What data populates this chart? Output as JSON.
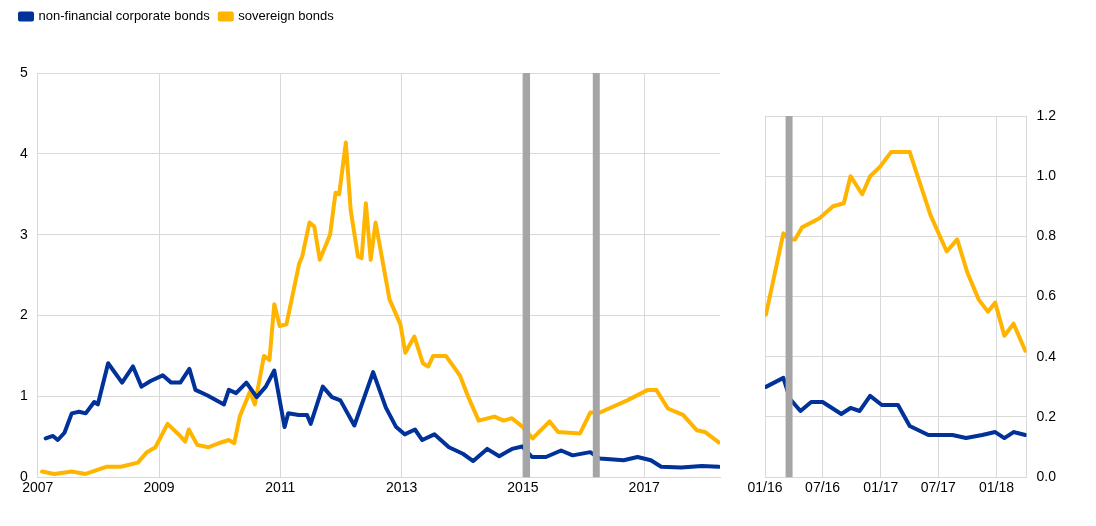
{
  "chart_data": [
    {
      "type": "line",
      "legend": "top left",
      "grid": true,
      "marker": "none",
      "line_style": "solid",
      "xlim": [
        2007,
        2018.25
      ],
      "xticks": [
        2007,
        2009,
        2011,
        2013,
        2015,
        2017
      ],
      "ylim": [
        0,
        5
      ],
      "yticks": [
        0,
        1,
        2,
        3,
        4,
        5
      ],
      "ref_lines": [
        {
          "axis": "x",
          "value": 2015.06,
          "label": null,
          "color": "#a5a5a5"
        },
        {
          "axis": "x",
          "value": 2016.21,
          "label": null,
          "color": "#a5a5a5"
        }
      ],
      "series": [
        {
          "name": "non-financial corporate bonds",
          "color": "#003299",
          "x": [
            2007.13,
            2007.25,
            2007.33,
            2007.44,
            2007.56,
            2007.68,
            2007.79,
            2007.93,
            2007.99,
            2008.16,
            2008.39,
            2008.57,
            2008.71,
            2008.86,
            2009.06,
            2009.2,
            2009.35,
            2009.5,
            2009.6,
            2009.8,
            2010.07,
            2010.15,
            2010.27,
            2010.44,
            2010.61,
            2010.76,
            2010.9,
            2011.07,
            2011.13,
            2011.3,
            2011.44,
            2011.5,
            2011.7,
            2011.85,
            2011.99,
            2012.22,
            2012.53,
            2012.74,
            2012.91,
            2013.05,
            2013.22,
            2013.34,
            2013.54,
            2013.78,
            2014.01,
            2014.18,
            2014.41,
            2014.61,
            2014.82,
            2014.99,
            2015.15,
            2015.38,
            2015.63,
            2015.82,
            2016.11,
            2016.27,
            2016.66,
            2016.89,
            2017.11,
            2017.28,
            2017.61,
            2017.95,
            2018.23
          ],
          "values": [
            0.48,
            0.51,
            0.46,
            0.55,
            0.79,
            0.81,
            0.79,
            0.93,
            0.9,
            1.41,
            1.17,
            1.37,
            1.12,
            1.19,
            1.26,
            1.17,
            1.17,
            1.34,
            1.08,
            1.01,
            0.9,
            1.08,
            1.04,
            1.17,
            0.99,
            1.12,
            1.32,
            0.62,
            0.79,
            0.77,
            0.77,
            0.66,
            1.12,
            0.99,
            0.95,
            0.64,
            1.3,
            0.86,
            0.62,
            0.53,
            0.59,
            0.46,
            0.53,
            0.37,
            0.29,
            0.2,
            0.35,
            0.26,
            0.35,
            0.38,
            0.25,
            0.25,
            0.33,
            0.27,
            0.31,
            0.23,
            0.21,
            0.25,
            0.21,
            0.13,
            0.12,
            0.14,
            0.13
          ]
        },
        {
          "name": "sovereign bonds",
          "color": "#ffb400",
          "x": [
            2007.07,
            2007.27,
            2007.56,
            2007.79,
            2008.14,
            2008.37,
            2008.65,
            2008.8,
            2008.94,
            2009.14,
            2009.35,
            2009.43,
            2009.49,
            2009.63,
            2009.81,
            2009.98,
            2010.15,
            2010.24,
            2010.33,
            2010.5,
            2010.58,
            2010.73,
            2010.82,
            2010.9,
            2010.99,
            2011.1,
            2011.31,
            2011.36,
            2011.48,
            2011.56,
            2011.65,
            2011.82,
            2011.91,
            2011.97,
            2012.08,
            2012.16,
            2012.28,
            2012.34,
            2012.41,
            2012.49,
            2012.57,
            2012.66,
            2012.8,
            2012.98,
            2013.06,
            2013.21,
            2013.35,
            2013.44,
            2013.52,
            2013.73,
            2013.96,
            2014.1,
            2014.27,
            2014.53,
            2014.68,
            2014.82,
            2015.0,
            2015.16,
            2015.44,
            2015.58,
            2015.94,
            2016.11,
            2016.27,
            2016.72,
            2017.06,
            2017.2,
            2017.39,
            2017.64,
            2017.87,
            2018.0,
            2018.23
          ],
          "values": [
            0.07,
            0.04,
            0.07,
            0.04,
            0.13,
            0.13,
            0.18,
            0.31,
            0.37,
            0.66,
            0.51,
            0.44,
            0.59,
            0.4,
            0.37,
            0.42,
            0.46,
            0.42,
            0.75,
            1.06,
            0.9,
            1.5,
            1.45,
            2.14,
            1.87,
            1.89,
            2.64,
            2.73,
            3.15,
            3.1,
            2.69,
            3.0,
            3.52,
            3.5,
            4.14,
            3.3,
            2.73,
            2.71,
            3.39,
            2.69,
            3.15,
            2.78,
            2.2,
            1.89,
            1.54,
            1.74,
            1.41,
            1.37,
            1.5,
            1.5,
            1.26,
            0.99,
            0.7,
            0.75,
            0.7,
            0.73,
            0.62,
            0.48,
            0.69,
            0.56,
            0.54,
            0.8,
            0.8,
            0.95,
            1.08,
            1.08,
            0.85,
            0.77,
            0.58,
            0.56,
            0.43
          ]
        }
      ]
    },
    {
      "type": "line",
      "grid": true,
      "marker": "none",
      "line_style": "solid",
      "xlim": [
        "2016-01-01",
        "2018-04-06"
      ],
      "xticks": [
        {
          "value": "2016-01-01",
          "label": "01/16"
        },
        {
          "value": "2016-07-01",
          "label": "07/16"
        },
        {
          "value": "2017-01-01",
          "label": "01/17"
        },
        {
          "value": "2017-07-01",
          "label": "07/17"
        },
        {
          "value": "2018-01-01",
          "label": "01/18"
        }
      ],
      "ylim": [
        0,
        1.2
      ],
      "yticks": [
        {
          "value": 0,
          "label": "0.0"
        },
        0.2,
        0.4,
        0.6,
        0.8,
        {
          "value": 1,
          "label": "1.0"
        },
        1.2
      ],
      "ref_lines": [
        {
          "axis": "x",
          "value": "2016-03-17",
          "label": null,
          "color": "#a5a5a5"
        }
      ],
      "series": [
        {
          "color": "#003299",
          "x": [
            "2016-01-04",
            "2016-02-28",
            "2016-03-20",
            "2016-04-22",
            "2016-05-26",
            "2016-07-01",
            "2016-08-29",
            "2016-09-27",
            "2016-10-26",
            "2016-11-28",
            "2017-01-04",
            "2017-02-24",
            "2017-04-02",
            "2017-05-31",
            "2017-08-15",
            "2017-09-27",
            "2017-11-17",
            "2017-12-28",
            "2018-01-26",
            "2018-02-24",
            "2018-04-02"
          ],
          "values": [
            0.3,
            0.33,
            0.26,
            0.22,
            0.25,
            0.25,
            0.21,
            0.23,
            0.22,
            0.27,
            0.24,
            0.24,
            0.17,
            0.14,
            0.14,
            0.13,
            0.14,
            0.15,
            0.13,
            0.15,
            0.14
          ]
        },
        {
          "color": "#ffb400",
          "x": [
            "2016-01-04",
            "2016-02-28",
            "2016-03-17",
            "2016-04-05",
            "2016-04-27",
            "2016-06-21",
            "2016-08-03",
            "2016-09-06",
            "2016-09-27",
            "2016-11-03",
            "2016-11-28",
            "2016-12-28",
            "2017-02-02",
            "2017-04-02",
            "2017-04-27",
            "2017-06-07",
            "2017-07-28",
            "2017-08-30",
            "2017-10-01",
            "2017-11-06",
            "2017-12-05",
            "2017-12-28",
            "2018-01-26",
            "2018-02-24",
            "2018-04-02"
          ],
          "values": [
            0.54,
            0.81,
            0.79,
            0.79,
            0.83,
            0.86,
            0.9,
            0.91,
            1.0,
            0.94,
            1.0,
            1.03,
            1.08,
            1.08,
            1.0,
            0.87,
            0.75,
            0.79,
            0.68,
            0.59,
            0.55,
            0.58,
            0.47,
            0.51,
            0.42
          ]
        }
      ]
    }
  ]
}
